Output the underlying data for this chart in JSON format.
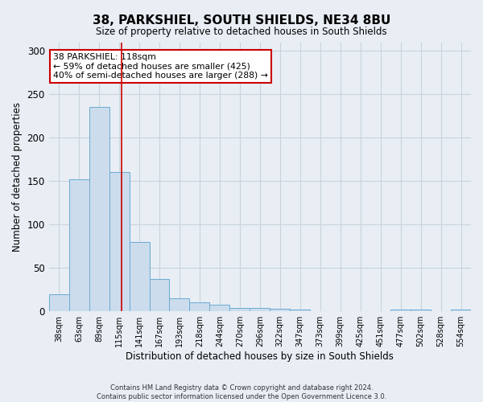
{
  "title": "38, PARKSHIEL, SOUTH SHIELDS, NE34 8BU",
  "subtitle": "Size of property relative to detached houses in South Shields",
  "xlabel": "Distribution of detached houses by size in South Shields",
  "ylabel": "Number of detached properties",
  "footer_lines": [
    "Contains HM Land Registry data © Crown copyright and database right 2024.",
    "Contains public sector information licensed under the Open Government Licence 3.0."
  ],
  "bin_labels": [
    "38sqm",
    "63sqm",
    "89sqm",
    "115sqm",
    "141sqm",
    "167sqm",
    "193sqm",
    "218sqm",
    "244sqm",
    "270sqm",
    "296sqm",
    "322sqm",
    "347sqm",
    "373sqm",
    "399sqm",
    "425sqm",
    "451sqm",
    "477sqm",
    "502sqm",
    "528sqm",
    "554sqm"
  ],
  "values": [
    20,
    152,
    235,
    160,
    80,
    37,
    15,
    10,
    8,
    4,
    4,
    3,
    2,
    0,
    0,
    0,
    0,
    2,
    2,
    0,
    2
  ],
  "bar_color": "#ccdcec",
  "bar_edge_color": "#6aaad4",
  "grid_color": "#c8d4dd",
  "background_color": "#e8eef4",
  "annotation_box_text": "38 PARKSHIEL: 118sqm\n← 59% of detached houses are smaller (425)\n40% of semi-detached houses are larger (288) →",
  "annotation_box_color": "white",
  "annotation_box_edge_color": "#cc0000",
  "property_line_color": "#cc0000",
  "ylim": [
    0,
    310
  ],
  "yticks": [
    0,
    50,
    100,
    150,
    200,
    250,
    300
  ]
}
